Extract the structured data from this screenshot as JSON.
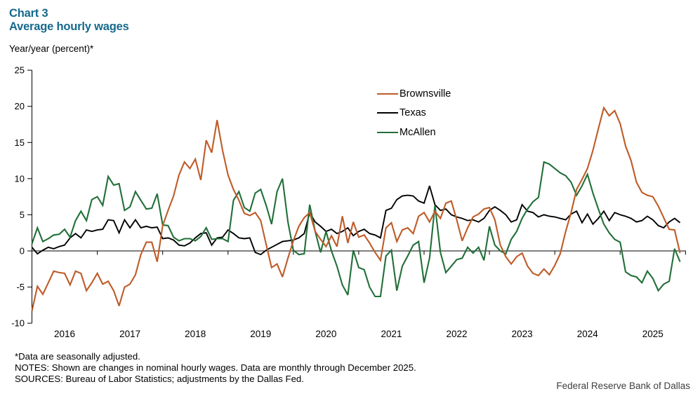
{
  "header": {
    "chart_label": "Chart 3",
    "title": "Average hourly wages",
    "subtitle": "Year/year  (percent)*"
  },
  "colors": {
    "title": "#16698c",
    "axis": "#000000",
    "brownsville": "#bf5b28",
    "texas": "#000000",
    "mcallen": "#226f39"
  },
  "legend": {
    "items": [
      {
        "label": "Brownsville",
        "color": "#bf5b28"
      },
      {
        "label": "Texas",
        "color": "#000000"
      },
      {
        "label": "McAllen",
        "color": "#226f39"
      }
    ]
  },
  "footnotes": [
    "*Data are seasonally adjusted.",
    "NOTES: Shown are changes in nominal hourly wages. Data are monthly through December 2025.",
    "SOURCES: Bureau of Labor Statistics; adjustments by the Dallas Fed."
  ],
  "branding": "Federal Reserve Bank of Dallas",
  "chart_data": {
    "type": "line",
    "title": "Average hourly wages",
    "ylabel": "Year/year (percent)",
    "x_unit": "month",
    "x_start": "2016-01",
    "x_end": "2025-12",
    "x_tick_years": [
      "2016",
      "2017",
      "2018",
      "2019",
      "2020",
      "2021",
      "2022",
      "2023",
      "2024",
      "2025"
    ],
    "ylim": [
      -10,
      25
    ],
    "y_ticks": [
      25,
      20,
      15,
      10,
      5,
      0,
      -5,
      -10
    ],
    "grid": false,
    "legend_position": "top-center",
    "series": [
      {
        "name": "Brownsville",
        "color": "#bf5b28",
        "values": [
          -8.3,
          -4.9,
          -6.0,
          -4.4,
          -2.8,
          -3.0,
          -3.1,
          -4.7,
          -2.8,
          -3.1,
          -5.5,
          -4.4,
          -3.1,
          -4.6,
          -4.2,
          -5.5,
          -7.6,
          -5.0,
          -4.6,
          -3.3,
          -0.5,
          1.2,
          1.2,
          -1.5,
          3.5,
          5.6,
          7.6,
          10.5,
          12.3,
          11.4,
          12.7,
          9.8,
          15.3,
          13.6,
          18.1,
          13.9,
          10.5,
          8.5,
          7.0,
          5.2,
          4.9,
          5.3,
          4.2,
          0.9,
          -2.3,
          -1.8,
          -3.6,
          -1.0,
          1.4,
          3.4,
          4.6,
          5.3,
          2.7,
          1.6,
          0.6,
          2.1,
          0.6,
          4.8,
          1.1,
          4.0,
          1.9,
          2.2,
          1.1,
          -0.2,
          -1.3,
          3.2,
          3.9,
          1.3,
          2.9,
          3.2,
          2.4,
          4.8,
          5.3,
          4.0,
          5.5,
          4.5,
          6.6,
          6.9,
          4.3,
          1.4,
          3.2,
          4.7,
          5.1,
          5.8,
          6.0,
          4.3,
          0.8,
          -0.8,
          -1.8,
          -0.8,
          -0.3,
          -2.1,
          -3.1,
          -3.4,
          -2.5,
          -3.3,
          -2.0,
          -0.4,
          2.7,
          5.3,
          8.5,
          9.9,
          11.4,
          13.9,
          16.9,
          19.8,
          18.7,
          19.4,
          17.6,
          14.5,
          12.5,
          9.5,
          8.1,
          7.7,
          7.5,
          6.2,
          4.6,
          3.0,
          2.9,
          -0.3
        ]
      },
      {
        "name": "Texas",
        "color": "#000000",
        "values": [
          0.5,
          -0.4,
          0.1,
          0.5,
          0.3,
          0.6,
          0.8,
          1.8,
          2.4,
          1.8,
          2.9,
          2.7,
          2.9,
          3.0,
          4.3,
          4.2,
          2.5,
          4.3,
          3.2,
          4.3,
          3.2,
          3.4,
          3.2,
          3.3,
          1.7,
          1.8,
          1.5,
          0.8,
          0.7,
          1.1,
          1.8,
          2.4,
          2.5,
          0.8,
          1.8,
          1.9,
          2.9,
          2.4,
          1.8,
          1.7,
          1.8,
          -0.2,
          -0.5,
          0.1,
          0.5,
          0.9,
          1.3,
          1.4,
          1.5,
          1.8,
          2.4,
          5.3,
          4.0,
          3.4,
          2.7,
          3.0,
          2.4,
          2.7,
          3.2,
          2.1,
          2.7,
          3.0,
          2.4,
          2.2,
          1.8,
          5.6,
          5.9,
          7.1,
          7.6,
          7.7,
          7.6,
          6.9,
          6.6,
          9.0,
          6.4,
          5.6,
          5.8,
          5.0,
          4.7,
          4.5,
          4.2,
          4.3,
          4.0,
          4.5,
          5.6,
          6.1,
          5.6,
          5.0,
          4.0,
          4.3,
          6.4,
          5.5,
          5.3,
          4.7,
          5.0,
          4.8,
          4.7,
          4.5,
          4.3,
          5.1,
          5.5,
          3.9,
          5.1,
          3.7,
          4.5,
          5.5,
          4.2,
          5.3,
          5.0,
          4.8,
          4.5,
          4.0,
          4.2,
          4.8,
          4.3,
          3.5,
          3.2,
          4.0,
          4.5,
          3.9
        ]
      },
      {
        "name": "McAllen",
        "color": "#226f39",
        "values": [
          1.0,
          3.2,
          1.3,
          1.7,
          2.2,
          2.3,
          3.0,
          1.9,
          4.2,
          5.5,
          4.2,
          7.1,
          7.5,
          6.3,
          10.3,
          9.1,
          9.3,
          5.6,
          6.1,
          8.2,
          7.0,
          5.8,
          5.9,
          7.9,
          3.6,
          3.5,
          1.9,
          1.4,
          1.7,
          1.7,
          1.4,
          2.0,
          3.2,
          1.6,
          1.7,
          1.7,
          1.3,
          7.0,
          8.2,
          6.0,
          5.5,
          8.0,
          8.5,
          6.3,
          3.7,
          8.2,
          10.0,
          4.0,
          0.1,
          -0.5,
          -0.4,
          6.4,
          2.7,
          -0.2,
          2.7,
          0.0,
          -2.1,
          -4.7,
          -6.1,
          0.1,
          -2.3,
          -2.6,
          -5.0,
          -6.3,
          -6.3,
          -0.7,
          0.1,
          -5.5,
          -2.1,
          -0.7,
          0.8,
          1.3,
          -4.4,
          -1.0,
          6.3,
          -0.2,
          -3.0,
          -2.1,
          -1.2,
          -1.0,
          0.5,
          -0.3,
          0.5,
          -1.3,
          3.4,
          0.8,
          0.0,
          -0.4,
          1.6,
          2.7,
          4.5,
          5.8,
          6.8,
          7.4,
          12.3,
          12.0,
          11.4,
          10.8,
          10.4,
          9.5,
          7.7,
          9.0,
          10.6,
          8.0,
          5.8,
          3.7,
          2.5,
          1.6,
          1.2,
          -2.9,
          -3.4,
          -3.6,
          -4.4,
          -2.8,
          -3.8,
          -5.5,
          -4.6,
          -4.2,
          0.3,
          -1.5
        ]
      }
    ]
  }
}
